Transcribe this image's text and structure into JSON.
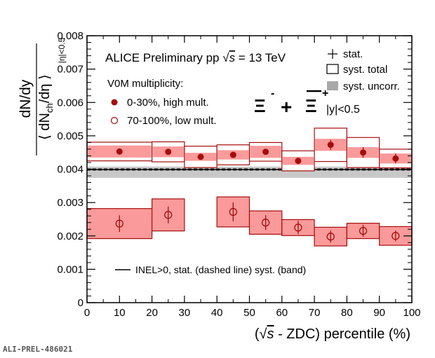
{
  "figure_ref": "ALI-PREL-486021",
  "chart_data": {
    "type": "scatter",
    "title": "ALICE Preliminary pp √s = 13 TeV",
    "title_parts": {
      "prefix": "ALICE Preliminary pp ",
      "sqrt": "√",
      "s": "s",
      "suffix": " = 13 TeV"
    },
    "xlabel": "(√s - ZDC) percentile (%)",
    "xlabel_parts": {
      "open": "(",
      "sqrt": "√",
      "s": "s",
      "rest": " - ZDC) percentile (%)"
    },
    "ylabel": "dN/dy / ⟨dNch/dη⟩ |η|<0.5",
    "ylabel_parts": {
      "num": "dN/dy",
      "den_open": "⟨ dN",
      "den_sub": "ch",
      "den_mid": "/dη ⟩",
      "cut": "|η|<0.5"
    },
    "xlim": [
      0,
      100
    ],
    "ylim": [
      0,
      0.008
    ],
    "xticks": [
      0,
      10,
      20,
      30,
      40,
      50,
      60,
      70,
      80,
      90,
      100
    ],
    "xtick_labels": [
      "0",
      "10",
      "20",
      "30",
      "40",
      "50",
      "60",
      "70",
      "80",
      "90",
      "100"
    ],
    "yticks": [
      0,
      0.001,
      0.002,
      0.003,
      0.004,
      0.005,
      0.006,
      0.007,
      0.008
    ],
    "ytick_labels": [
      "0",
      "0.001",
      "0.002",
      "0.003",
      "0.004",
      "0.005",
      "0.006",
      "0.007",
      "0.008"
    ],
    "particle_label": {
      "xi": "Ξ",
      "minus": "-",
      "plus_sign": "+",
      "plus_charge": "+"
    },
    "rapidity_label": "|y|<0.5",
    "legend_header": "V0M multiplicity:",
    "legend": [
      {
        "label": "0-30%, high mult.",
        "marker": "filled-circle"
      },
      {
        "label": "70-100%, low mult.",
        "marker": "open-circle"
      }
    ],
    "uncertainty_legend": [
      "stat.",
      "syst. total",
      "syst. uncorr."
    ],
    "inel_legend": "INEL>0, stat. (dashed line) syst. (band)",
    "inel_reference": {
      "value": 0.00399,
      "stat_band": [
        0.00397,
        0.00401
      ],
      "syst_band": [
        0.00374,
        0.00408
      ]
    },
    "colors": {
      "marker": "#a50d0d",
      "box_edge": "#a50d0d",
      "syst_total_fill": "#fa9a9a",
      "syst_uncorr_fill": "#bdbdbd",
      "inel_band": "#c8c8c8"
    },
    "series": [
      {
        "name": "0-30%, high mult.",
        "marker": "filled",
        "points": [
          {
            "x": 10,
            "xlow": 0,
            "xhigh": 20,
            "y": 0.00453,
            "stat": 8e-05,
            "syst": 0.00028,
            "uncorr": 0.00018
          },
          {
            "x": 25,
            "xlow": 20,
            "xhigh": 30,
            "y": 0.00452,
            "stat": 7e-05,
            "syst": 0.0003,
            "uncorr": 0.00016
          },
          {
            "x": 35,
            "xlow": 30,
            "xhigh": 40,
            "y": 0.00437,
            "stat": 6e-05,
            "syst": 0.00032,
            "uncorr": 0.00012
          },
          {
            "x": 45,
            "xlow": 40,
            "xhigh": 50,
            "y": 0.00443,
            "stat": 7e-05,
            "syst": 0.0003,
            "uncorr": 0.00014
          },
          {
            "x": 55,
            "xlow": 50,
            "xhigh": 60,
            "y": 0.00452,
            "stat": 7e-05,
            "syst": 0.00028,
            "uncorr": 0.00018
          },
          {
            "x": 65,
            "xlow": 60,
            "xhigh": 70,
            "y": 0.00425,
            "stat": 0.0001,
            "syst": 0.0003,
            "uncorr": 0.00012
          },
          {
            "x": 75,
            "xlow": 70,
            "xhigh": 80,
            "y": 0.00473,
            "stat": 0.00015,
            "syst": 0.0005,
            "uncorr": 0.00018
          },
          {
            "x": 85,
            "xlow": 80,
            "xhigh": 90,
            "y": 0.0045,
            "stat": 0.00016,
            "syst": 0.00045,
            "uncorr": 0.00016
          },
          {
            "x": 95,
            "xlow": 90,
            "xhigh": 100,
            "y": 0.00432,
            "stat": 0.00015,
            "syst": 0.00028,
            "uncorr": 0.00015
          }
        ]
      },
      {
        "name": "70-100%, low mult.",
        "marker": "open",
        "points": [
          {
            "x": 10,
            "xlow": 0,
            "xhigh": 20,
            "y": 0.00237,
            "stat": 0.00025,
            "syst": 0.00045
          },
          {
            "x": 25,
            "xlow": 20,
            "xhigh": 30,
            "y": 0.00263,
            "stat": 0.00025,
            "syst": 0.00048
          },
          {
            "x": 45,
            "xlow": 40,
            "xhigh": 50,
            "y": 0.00272,
            "stat": 0.00028,
            "syst": 0.00045
          },
          {
            "x": 55,
            "xlow": 50,
            "xhigh": 60,
            "y": 0.0024,
            "stat": 0.00022,
            "syst": 0.00035
          },
          {
            "x": 65,
            "xlow": 60,
            "xhigh": 70,
            "y": 0.00225,
            "stat": 0.0002,
            "syst": 0.00024
          },
          {
            "x": 75,
            "xlow": 70,
            "xhigh": 80,
            "y": 0.00198,
            "stat": 0.00018,
            "syst": 0.00028
          },
          {
            "x": 85,
            "xlow": 80,
            "xhigh": 90,
            "y": 0.00215,
            "stat": 0.00018,
            "syst": 0.00023
          },
          {
            "x": 95,
            "xlow": 90,
            "xhigh": 100,
            "y": 0.002,
            "stat": 0.00016,
            "syst": 0.00028
          }
        ]
      }
    ]
  }
}
